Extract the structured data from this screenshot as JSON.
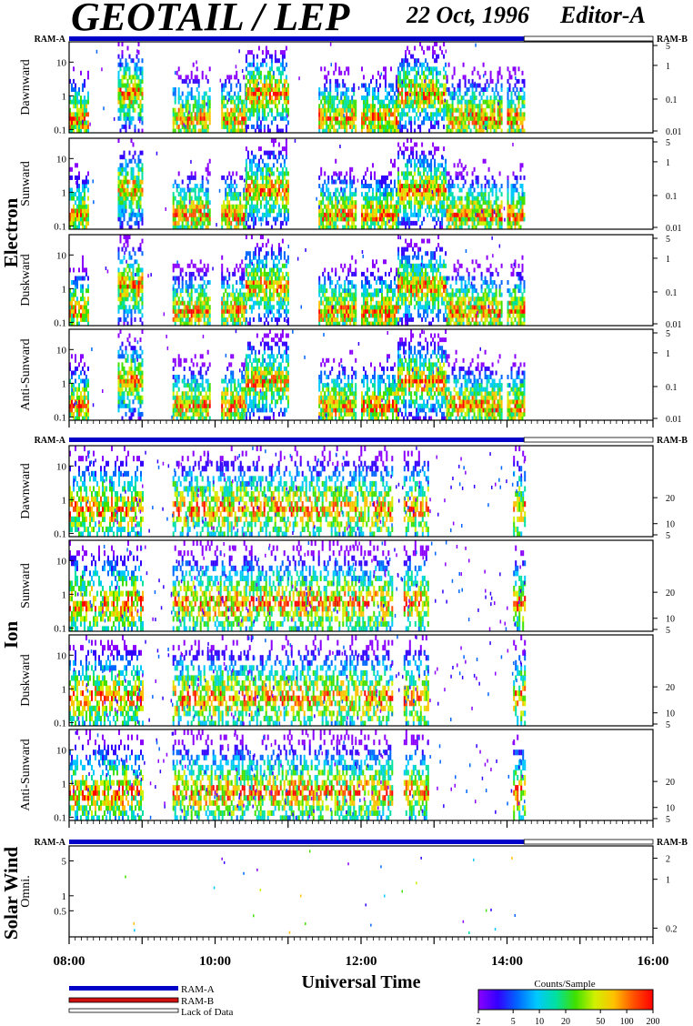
{
  "header": {
    "title": "GEOTAIL / LEP",
    "date": "22 Oct, 1996",
    "editor": "Editor-A"
  },
  "colors": {
    "ram_a": "#0000c8",
    "ram_b": "#d01010",
    "lack_of_data": "#ffffff",
    "frame": "#000000",
    "colormap": [
      "#8a00ff",
      "#3300ff",
      "#0066ff",
      "#00c8ff",
      "#00e0a0",
      "#40e000",
      "#d0f000",
      "#ffc000",
      "#ff5000",
      "#ff0000"
    ]
  },
  "chart_data": [
    {
      "type": "heatmap",
      "group": "Electron",
      "panels": [
        "Dawnward",
        "Sunward",
        "Duskward",
        "Anti-Sunward"
      ],
      "ylim": [
        0.08,
        40
      ],
      "log_scale": true,
      "left_ticks": [
        "10",
        "1",
        "0.1"
      ],
      "right_ticks": [
        "5",
        "1",
        "0.1",
        "0.01"
      ],
      "mode_bar": {
        "left": "RAM-A",
        "right": "RAM-B",
        "ram_a_end": "14:14"
      },
      "activity_intervals": [
        [
          "08:00",
          "08:15"
        ],
        [
          "08:40",
          "09:00"
        ],
        [
          "09:25",
          "09:55"
        ],
        [
          "10:05",
          "10:25"
        ],
        [
          "10:25",
          "11:00"
        ],
        [
          "11:25",
          "11:55"
        ],
        [
          "12:00",
          "12:30"
        ],
        [
          "12:30",
          "13:10"
        ],
        [
          "13:10",
          "13:55"
        ],
        [
          "14:00",
          "14:14"
        ]
      ]
    },
    {
      "type": "heatmap",
      "group": "Ion",
      "panels": [
        "Dawnward",
        "Sunward",
        "Duskward",
        "Anti-Sunward"
      ],
      "ylim": [
        0.08,
        40
      ],
      "log_scale": true,
      "left_ticks": [
        "10",
        "1",
        "0.1"
      ],
      "right_ticks": [
        "20",
        "10",
        "5"
      ],
      "mode_bar": {
        "left": "RAM-A",
        "right": "RAM-B",
        "ram_a_end": "14:14"
      },
      "activity_intervals": [
        [
          "08:00",
          "09:00"
        ],
        [
          "09:25",
          "11:40"
        ],
        [
          "11:40",
          "12:25"
        ],
        [
          "12:35",
          "12:55"
        ],
        [
          "14:05",
          "14:14"
        ]
      ]
    },
    {
      "type": "heatmap",
      "group": "Solar Wind",
      "panels": [
        "Omni."
      ],
      "ylim": [
        0.15,
        10
      ],
      "log_scale": true,
      "left_ticks": [
        "5",
        "1",
        "0.5"
      ],
      "right_ticks": [
        "2",
        "1",
        "0.2"
      ],
      "mode_bar": {
        "left": "RAM-A",
        "right": "RAM-B",
        "ram_a_end": "14:14"
      }
    }
  ],
  "x_axis": {
    "title": "Universal Time",
    "range": [
      "08:00",
      "16:00"
    ],
    "labels": [
      "08:00",
      "10:00",
      "12:00",
      "14:00",
      "16:00"
    ]
  },
  "legend": {
    "ram_a": "RAM-A",
    "ram_b": "RAM-B",
    "lack": "Lack of Data"
  },
  "colorbar": {
    "title": "Counts/Sample",
    "range": [
      2,
      200
    ],
    "log_scale": true,
    "ticks": [
      "2",
      "5",
      "10",
      "20",
      "50",
      "100",
      "200"
    ]
  }
}
